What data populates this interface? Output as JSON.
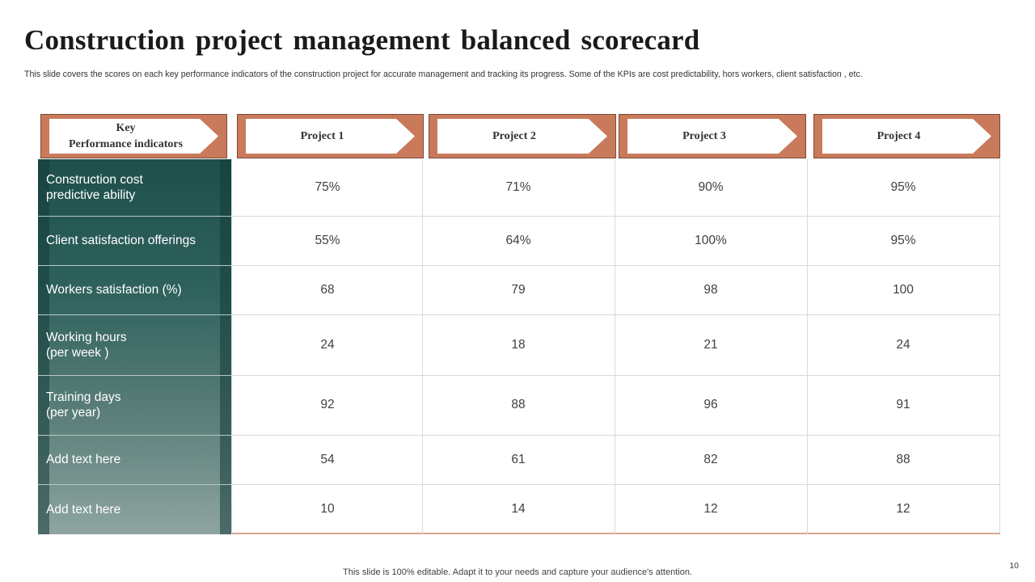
{
  "slide": {
    "title": "Construction project management balanced scorecard",
    "subtitle": "This slide covers the scores on each key performance indicators of the construction project for accurate management and tracking its progress. Some of the KPIs are cost predictability, hors workers, client satisfaction , etc.",
    "footer": "This slide is 100% editable. Adapt it to your needs and capture your audience's attention.",
    "page_number": "10"
  },
  "table": {
    "kpi_header": "Key\nPerformance  indicators",
    "columns": [
      "Project  1",
      "Project  2",
      "Project  3",
      "Project  4"
    ],
    "rows": [
      {
        "kpi": "Construction cost\npredictive ability",
        "values": [
          "75%",
          "71%",
          "90%",
          "95%"
        ]
      },
      {
        "kpi": "Client satisfaction offerings",
        "values": [
          "55%",
          "64%",
          "100%",
          "95%"
        ]
      },
      {
        "kpi": "Workers satisfaction (%)",
        "values": [
          "68",
          "79",
          "98",
          "100"
        ]
      },
      {
        "kpi": "Working hours\n(per week )",
        "values": [
          "24",
          "18",
          "21",
          "24"
        ]
      },
      {
        "kpi": "Training days\n(per year)",
        "values": [
          "92",
          "88",
          "96",
          "91"
        ]
      },
      {
        "kpi": "Add text here",
        "values": [
          "54",
          "61",
          "82",
          "88"
        ]
      },
      {
        "kpi": "Add text here",
        "values": [
          "10",
          "14",
          "12",
          "12"
        ]
      }
    ]
  },
  "colors": {
    "header_accent": "#c97a5a",
    "kpi_column_dark": "#1e4f4b",
    "kpi_column_light": "#8fa5a1"
  }
}
